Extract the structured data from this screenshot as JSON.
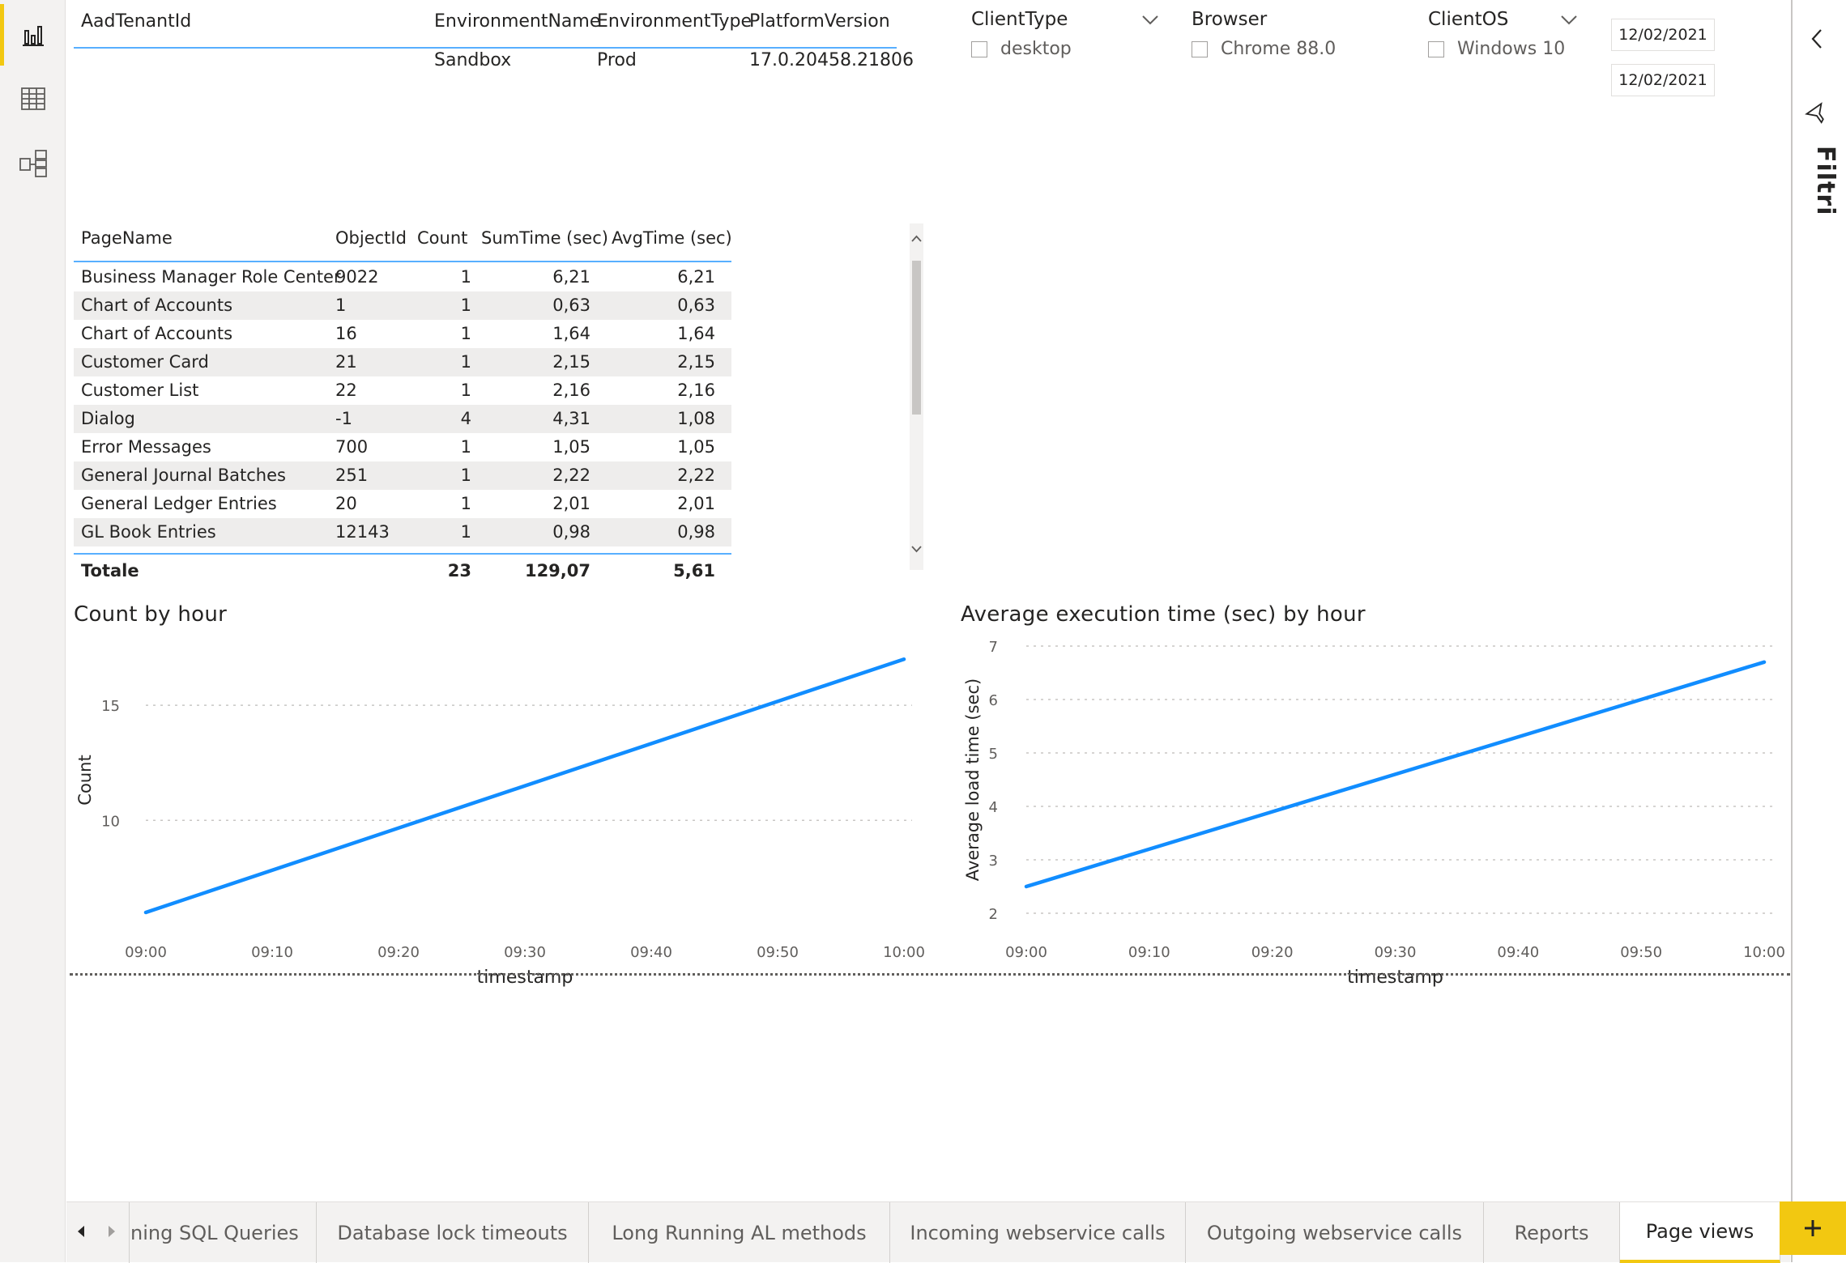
{
  "env_table": {
    "headers": [
      "AadTenantId",
      "EnvironmentName",
      "EnvironmentType",
      "PlatformVersion"
    ],
    "row": [
      "",
      "Sandbox",
      "Prod",
      "17.0.20458.21806"
    ]
  },
  "slicers": {
    "client_type": {
      "title": "ClientType",
      "item": "desktop"
    },
    "browser": {
      "title": "Browser",
      "item": "Chrome 88.0"
    },
    "client_os": {
      "title": "ClientOS",
      "item": "Windows 10"
    },
    "date_start": "12/02/2021",
    "date_end": "12/02/2021"
  },
  "page_table": {
    "headers": [
      "PageName",
      "ObjectId",
      "Count",
      "SumTime (sec)",
      "AvgTime (sec)"
    ],
    "rows": [
      [
        "Business Manager Role Center",
        "9022",
        "1",
        "6,21",
        "6,21"
      ],
      [
        "Chart of Accounts",
        "1",
        "1",
        "0,63",
        "0,63"
      ],
      [
        "Chart of Accounts",
        "16",
        "1",
        "1,64",
        "1,64"
      ],
      [
        "Customer Card",
        "21",
        "1",
        "2,15",
        "2,15"
      ],
      [
        "Customer List",
        "22",
        "1",
        "2,16",
        "2,16"
      ],
      [
        "Dialog",
        "-1",
        "4",
        "4,31",
        "1,08"
      ],
      [
        "Error Messages",
        "700",
        "1",
        "1,05",
        "1,05"
      ],
      [
        "General Journal Batches",
        "251",
        "1",
        "2,22",
        "2,22"
      ],
      [
        "General Ledger Entries",
        "20",
        "1",
        "2,01",
        "2,01"
      ],
      [
        "GL Book Entries",
        "12143",
        "1",
        "0,98",
        "0,98"
      ]
    ],
    "total": {
      "label": "Totale",
      "count": "23",
      "sum": "129,07",
      "avg": "5,61"
    }
  },
  "chart_data": [
    {
      "type": "line",
      "title": "Count by hour",
      "xlabel": "timestamp",
      "ylabel": "Count",
      "x": [
        "09:00",
        "10:00"
      ],
      "x_ticks": [
        "09:00",
        "09:10",
        "09:20",
        "09:30",
        "09:40",
        "09:50",
        "10:00"
      ],
      "values": [
        6,
        17
      ],
      "y_ticks": [
        10,
        15
      ],
      "ylim": [
        6,
        17.5
      ],
      "grid": true,
      "color": "#118dff"
    },
    {
      "type": "line",
      "title": "Average execution time (sec) by hour",
      "xlabel": "timestamp",
      "ylabel": "Average load time (sec)",
      "x": [
        "09:00",
        "10:00"
      ],
      "x_ticks": [
        "09:00",
        "09:10",
        "09:20",
        "09:30",
        "09:40",
        "09:50",
        "10:00"
      ],
      "values": [
        2.5,
        6.7
      ],
      "y_ticks": [
        2,
        3,
        4,
        5,
        6,
        7
      ],
      "ylim": [
        2,
        7
      ],
      "grid": true,
      "color": "#118dff"
    }
  ],
  "filter_pane": {
    "label": "Filtri"
  },
  "tabs": [
    "ning SQL Queries",
    "Database lock timeouts",
    "Long Running AL methods",
    "Incoming webservice calls",
    "Outgoing webservice calls",
    "Reports",
    "Page views"
  ],
  "active_tab": "Page views",
  "icons": {
    "rail": [
      "report-view-icon",
      "data-view-icon",
      "model-view-icon"
    ],
    "filter": "filter-icon",
    "collapse": "chevron-left-icon",
    "add": "plus-icon"
  },
  "colors": {
    "accent": "#f2c811",
    "line": "#118dff"
  }
}
